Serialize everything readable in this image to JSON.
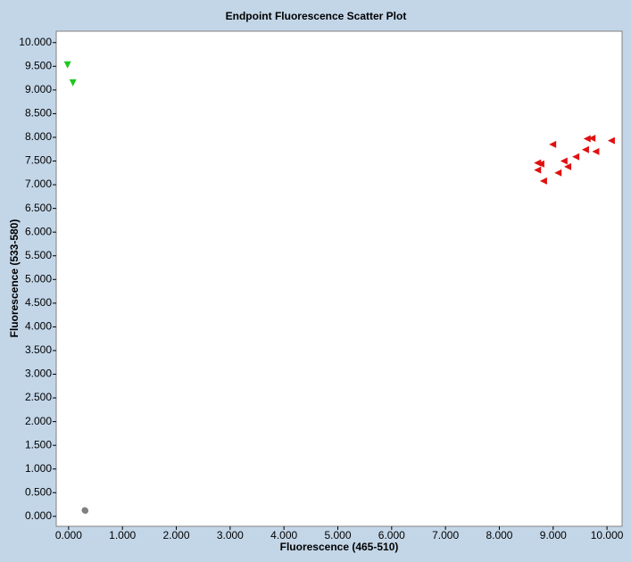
{
  "chart_data": {
    "type": "scatter",
    "title": "Endpoint Fluorescence Scatter Plot",
    "x_label": "Fluorescence (465-510)",
    "y_label": "Fluorescence (533-580)",
    "xlim": [
      -0.23,
      10.28
    ],
    "ylim": [
      -0.21,
      10.24
    ],
    "xticks": [
      {
        "value": 0,
        "label": "0.000"
      },
      {
        "value": 1,
        "label": "1.000"
      },
      {
        "value": 2,
        "label": "2.000"
      },
      {
        "value": 3,
        "label": "3.000"
      },
      {
        "value": 4,
        "label": "4.000"
      },
      {
        "value": 5,
        "label": "5.000"
      },
      {
        "value": 6,
        "label": "6.000"
      },
      {
        "value": 7,
        "label": "7.000"
      },
      {
        "value": 8,
        "label": "8.000"
      },
      {
        "value": 9,
        "label": "9.000"
      },
      {
        "value": 10,
        "label": "10.000"
      }
    ],
    "yticks": [
      {
        "value": 0,
        "label": "0.000"
      },
      {
        "value": 0.5,
        "label": "0.500"
      },
      {
        "value": 1,
        "label": "1.000"
      },
      {
        "value": 1.5,
        "label": "1.500"
      },
      {
        "value": 2,
        "label": "2.000"
      },
      {
        "value": 2.5,
        "label": "2.500"
      },
      {
        "value": 3,
        "label": "3.000"
      },
      {
        "value": 3.5,
        "label": "3.500"
      },
      {
        "value": 4,
        "label": "4.000"
      },
      {
        "value": 4.5,
        "label": "4.500"
      },
      {
        "value": 5,
        "label": "5.000"
      },
      {
        "value": 5.5,
        "label": "5.500"
      },
      {
        "value": 6,
        "label": "6.000"
      },
      {
        "value": 6.5,
        "label": "6.500"
      },
      {
        "value": 7,
        "label": "7.000"
      },
      {
        "value": 7.5,
        "label": "7.500"
      },
      {
        "value": 8,
        "label": "8.000"
      },
      {
        "value": 8.5,
        "label": "8.500"
      },
      {
        "value": 9,
        "label": "9.000"
      },
      {
        "value": 9.5,
        "label": "9.500"
      },
      {
        "value": 10,
        "label": "10.000"
      }
    ],
    "series": [
      {
        "color": "#1ec81e",
        "marker": "triangle-down",
        "x": [
          -0.02,
          0.08
        ],
        "values": [
          9.53,
          9.15
        ]
      },
      {
        "color": "#808080",
        "marker": "circle",
        "x": [
          0.3,
          0.31
        ],
        "values": [
          0.13,
          0.12
        ]
      },
      {
        "color": "#e01010",
        "marker": "triangle-left",
        "x": [
          8.99,
          9.63,
          9.72,
          10.08,
          8.71,
          8.77,
          9.2,
          9.42,
          9.6,
          9.79,
          9.27,
          9.09,
          8.71,
          8.82
        ],
        "values": [
          7.85,
          7.97,
          7.98,
          7.93,
          7.46,
          7.44,
          7.5,
          7.59,
          7.74,
          7.7,
          7.38,
          7.25,
          7.31,
          7.08
        ]
      }
    ]
  }
}
